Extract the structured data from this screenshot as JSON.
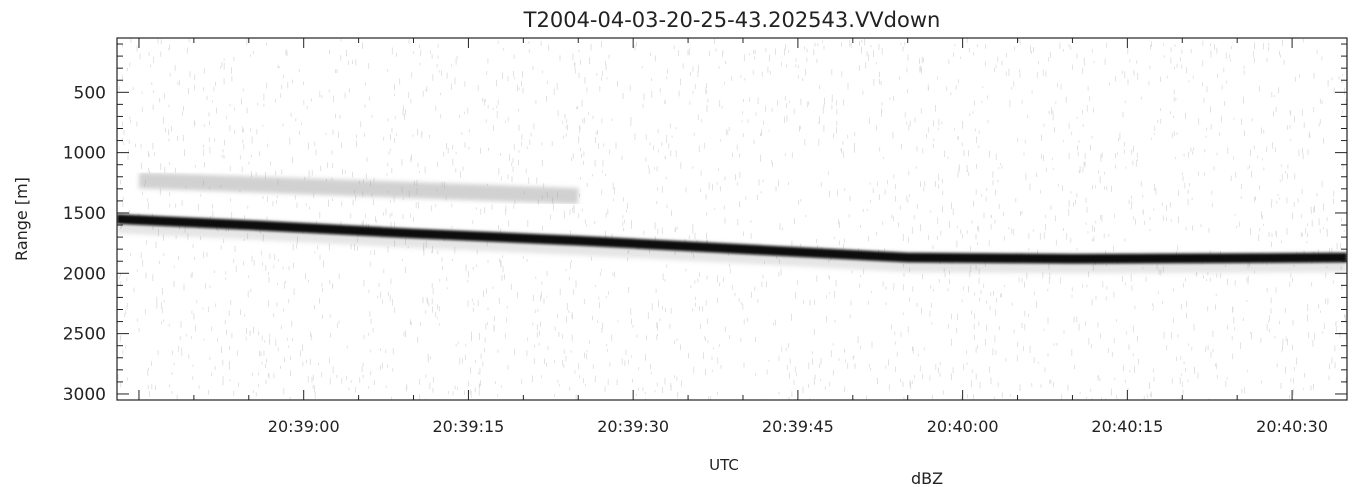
{
  "chart_data": {
    "type": "heatmap",
    "title": "T2004-04-03-20-25-43.202543.VVdown",
    "xlabel": "UTC",
    "ylabel": "Range [m]",
    "colorbar_label": "dBZ",
    "x_tick_labels": [
      "20:39:00",
      "20:39:15",
      "20:39:30",
      "20:39:45",
      "20:40:00",
      "20:40:15",
      "20:40:30"
    ],
    "y_tick_labels": [
      "500",
      "1000",
      "1500",
      "2000",
      "2500",
      "3000"
    ],
    "x_range_seconds": [
      -17,
      95
    ],
    "y_range_m": [
      50,
      3050
    ],
    "y_inverted": true,
    "grid": false,
    "colormap": "grayscale (white = low, black = high)",
    "strong_echo_band": {
      "t_seconds": [
        -17,
        -5,
        10,
        25,
        40,
        55,
        70,
        85,
        95
      ],
      "range_m": [
        1550,
        1600,
        1670,
        1730,
        1800,
        1870,
        1880,
        1875,
        1870
      ],
      "thickness_m": 80
    },
    "weak_echo_layer": {
      "t_seconds": [
        -15,
        25
      ],
      "range_m": [
        1230,
        1360
      ]
    }
  }
}
